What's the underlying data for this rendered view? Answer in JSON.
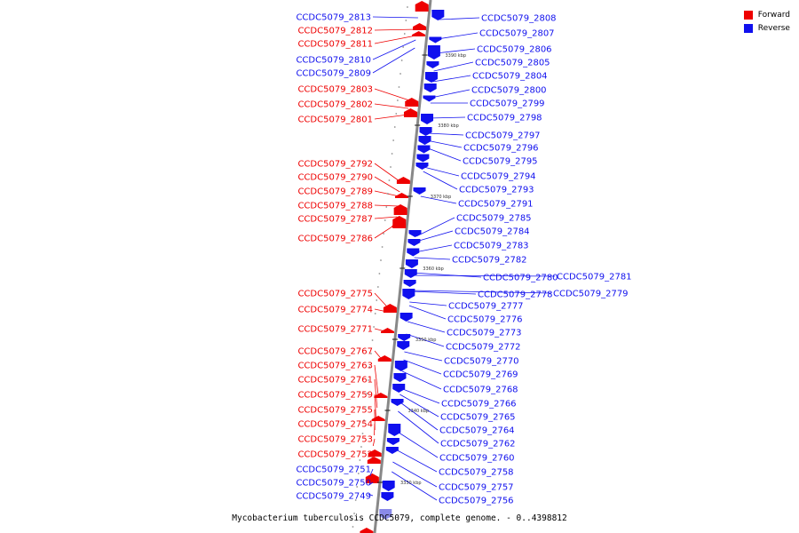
{
  "colors": {
    "forward": "#ee0000",
    "reverse": "#1010ee",
    "backbone": "#888888"
  },
  "legend": [
    {
      "label": "Forward",
      "color": "#ee0000"
    },
    {
      "label": "Reverse",
      "color": "#1010ee"
    }
  ],
  "caption": "Mycobacterium tuberculosis CCDC5079, complete genome. - 0..4398812",
  "ticks": [
    "3390 kbp",
    "3380 kbp",
    "3370 kbp",
    "3360 kbp",
    "3350 kbp",
    "3340 kbp",
    "3330 kbp"
  ],
  "forward_genes": [
    "CCDC5079_2812",
    "CCDC5079_2811",
    "CCDC5079_2803",
    "CCDC5079_2802",
    "CCDC5079_2801",
    "CCDC5079_2792",
    "CCDC5079_2790",
    "CCDC5079_2789",
    "CCDC5079_2788",
    "CCDC5079_2787",
    "CCDC5079_2786",
    "CCDC5079_2775",
    "CCDC5079_2774",
    "CCDC5079_2771",
    "CCDC5079_2767",
    "CCDC5079_2763",
    "CCDC5079_2761",
    "CCDC5079_2759",
    "CCDC5079_2755",
    "CCDC5079_2754",
    "CCDC5079_2753",
    "CCDC5079_2752"
  ],
  "reverse_genes_left": [
    "CCDC5079_2813",
    "CCDC5079_2810",
    "CCDC5079_2809",
    "CCDC5079_2751",
    "CCDC5079_2750",
    "CCDC5079_2749"
  ],
  "reverse_genes_right": [
    "CCDC5079_2808",
    "CCDC5079_2807",
    "CCDC5079_2806",
    "CCDC5079_2805",
    "CCDC5079_2804",
    "CCDC5079_2800",
    "CCDC5079_2799",
    "CCDC5079_2798",
    "CCDC5079_2797",
    "CCDC5079_2796",
    "CCDC5079_2795",
    "CCDC5079_2794",
    "CCDC5079_2793",
    "CCDC5079_2791",
    "CCDC5079_2785",
    "CCDC5079_2784",
    "CCDC5079_2783",
    "CCDC5079_2782",
    "CCDC5079_2780",
    "CCDC5079_2781",
    "CCDC5079_2778",
    "CCDC5079_2779",
    "CCDC5079_2777",
    "CCDC5079_2776",
    "CCDC5079_2773",
    "CCDC5079_2772",
    "CCDC5079_2770",
    "CCDC5079_2769",
    "CCDC5079_2768",
    "CCDC5079_2766",
    "CCDC5079_2765",
    "CCDC5079_2764",
    "CCDC5079_2762",
    "CCDC5079_2760",
    "CCDC5079_2758",
    "CCDC5079_2757",
    "CCDC5079_2756"
  ]
}
